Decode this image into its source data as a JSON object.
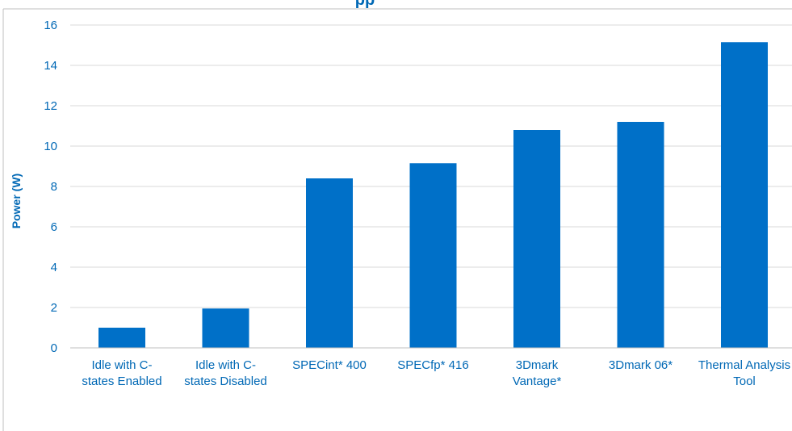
{
  "chart_data": {
    "type": "bar",
    "title_fragment": "pp",
    "ylabel": "Power (W)",
    "ylim": [
      0,
      16
    ],
    "yticks": [
      0,
      2,
      4,
      6,
      8,
      10,
      12,
      14,
      16
    ],
    "grid": true,
    "categories": [
      [
        "Idle with C-",
        "states Enabled"
      ],
      [
        "Idle with C-",
        "states Disabled"
      ],
      [
        "SPECint* 400"
      ],
      [
        "SPECfp* 416"
      ],
      [
        "3Dmark",
        "Vantage*"
      ],
      [
        "3Dmark 06*"
      ],
      [
        "Thermal Analysis",
        "Tool"
      ]
    ],
    "values": [
      1.0,
      1.95,
      8.4,
      9.15,
      10.8,
      11.2,
      15.15
    ],
    "bar_color": "#0070c8",
    "text_color": "#0068b5",
    "grid_color": "#d9d9d9"
  }
}
